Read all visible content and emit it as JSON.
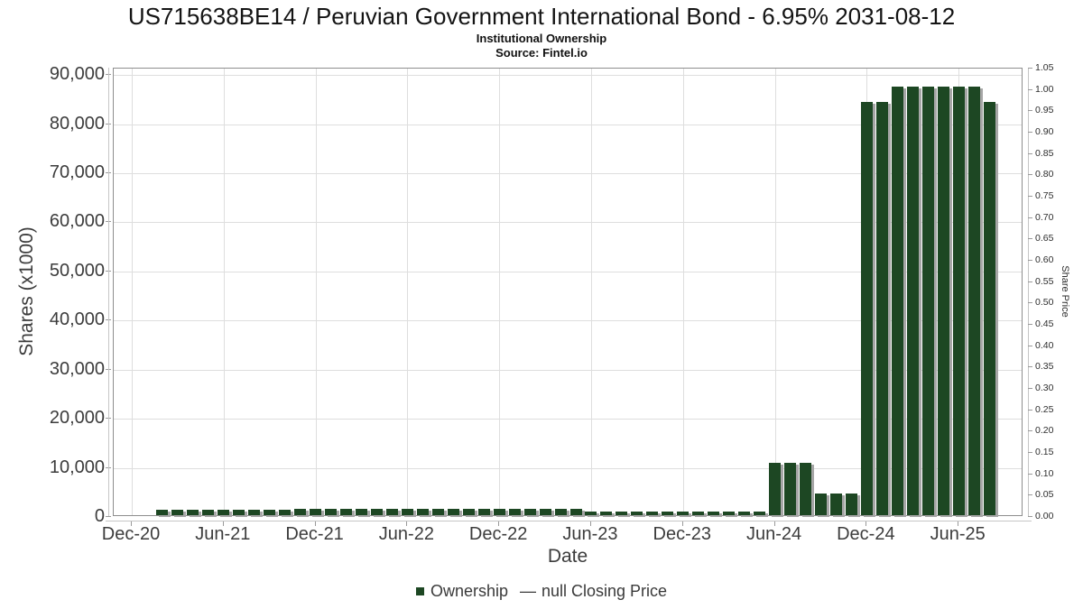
{
  "header": {
    "title": "US715638BE14 / Peruvian Government International Bond - 6.95% 2031-08-12",
    "subtitle": "Institutional Ownership",
    "source": "Source: Fintel.io"
  },
  "legend": {
    "ownership_label": "Ownership",
    "dash": "—",
    "closing_price_label": "null Closing Price"
  },
  "colors": {
    "bar": "#1d4723",
    "bar_shadow": "#a6a6a6",
    "grid": "#dedede",
    "plot_border": "#8e8e8e",
    "tick_text": "#3c3c3c"
  },
  "chart_data": {
    "type": "bar",
    "title": "US715638BE14 / Peruvian Government International Bond - 6.95% 2031-08-12",
    "subtitle": "Institutional Ownership",
    "source": "Source: Fintel.io",
    "xlabel": "Date",
    "ylabel": "Shares (x1000)",
    "y2label": "Share Price",
    "ylim": [
      0,
      91300
    ],
    "y2lim": [
      0,
      1.05
    ],
    "grid": true,
    "legend_position": "bottom-center",
    "y_ticks": [
      "0",
      "10,000",
      "20,000",
      "30,000",
      "40,000",
      "50,000",
      "60,000",
      "70,000",
      "80,000",
      "90,000"
    ],
    "y2_ticks": [
      "0.00",
      "0.05",
      "0.10",
      "0.15",
      "0.20",
      "0.25",
      "0.30",
      "0.35",
      "0.40",
      "0.45",
      "0.50",
      "0.55",
      "0.60",
      "0.65",
      "0.70",
      "0.75",
      "0.80",
      "0.85",
      "0.90",
      "0.95",
      "1.00",
      "1.05"
    ],
    "x_ticks": [
      {
        "m": 0,
        "label": "Dec-20"
      },
      {
        "m": 6,
        "label": "Jun-21"
      },
      {
        "m": 12,
        "label": "Dec-21"
      },
      {
        "m": 18,
        "label": "Jun-22"
      },
      {
        "m": 24,
        "label": "Dec-22"
      },
      {
        "m": 30,
        "label": "Jun-23"
      },
      {
        "m": 36,
        "label": "Dec-23"
      },
      {
        "m": 42,
        "label": "Jun-24"
      },
      {
        "m": 48,
        "label": "Dec-24"
      },
      {
        "m": 54,
        "label": "Jun-25"
      }
    ],
    "x_start_month_offset": 2,
    "categories": [
      "Feb-21",
      "Mar-21",
      "Apr-21",
      "May-21",
      "Jun-21",
      "Jul-21",
      "Aug-21",
      "Sep-21",
      "Oct-21",
      "Nov-21",
      "Dec-21",
      "Jan-22",
      "Feb-22",
      "Mar-22",
      "Apr-22",
      "May-22",
      "Jun-22",
      "Jul-22",
      "Aug-22",
      "Sep-22",
      "Oct-22",
      "Nov-22",
      "Dec-22",
      "Jan-23",
      "Feb-23",
      "Mar-23",
      "Apr-23",
      "May-23",
      "Jun-23",
      "Jul-23",
      "Aug-23",
      "Sep-23",
      "Oct-23",
      "Nov-23",
      "Dec-23",
      "Jan-24",
      "Feb-24",
      "Mar-24",
      "Apr-24",
      "May-24",
      "Jun-24",
      "Jul-24",
      "Aug-24",
      "Sep-24",
      "Oct-24",
      "Nov-24",
      "Dec-24",
      "Jan-25",
      "Feb-25",
      "Mar-25",
      "Apr-25",
      "May-25",
      "Jun-25",
      "Jul-25",
      "Aug-25"
    ],
    "series": [
      {
        "name": "Ownership",
        "values": [
          1050,
          1100,
          1100,
          1100,
          1100,
          1150,
          1150,
          1150,
          1150,
          1200,
          1200,
          1200,
          1200,
          1200,
          1200,
          1200,
          1200,
          1200,
          1250,
          1250,
          1250,
          1250,
          1250,
          1250,
          1250,
          1250,
          1200,
          1200,
          650,
          650,
          650,
          650,
          650,
          650,
          650,
          650,
          650,
          650,
          650,
          650,
          10600,
          10600,
          10600,
          4500,
          4500,
          4500,
          84100,
          84100,
          87200,
          87200,
          87200,
          87200,
          87200,
          87200,
          84100
        ]
      }
    ],
    "price_series_note": "null Closing Price (no price data plotted)"
  }
}
